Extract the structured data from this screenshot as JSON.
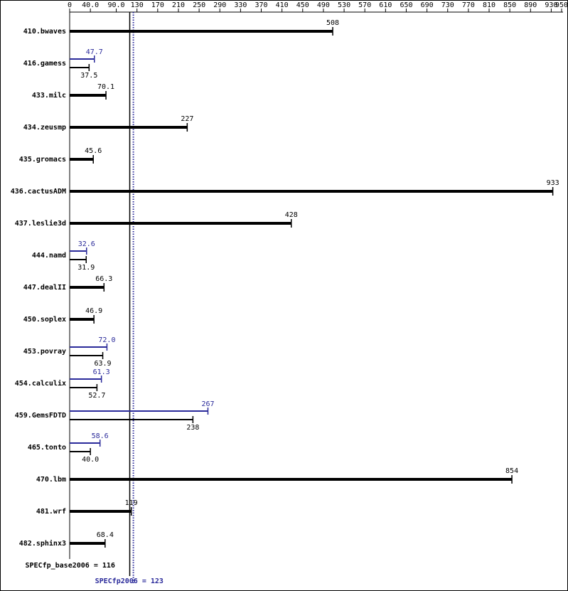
{
  "chart_data": {
    "type": "bar",
    "orientation": "horizontal",
    "categories": [
      "410.bwaves",
      "416.gamess",
      "433.milc",
      "434.zeusmp",
      "435.gromacs",
      "436.cactusADM",
      "437.leslie3d",
      "444.namd",
      "447.dealII",
      "450.soplex",
      "453.povray",
      "454.calculix",
      "459.GemsFDTD",
      "465.tonto",
      "470.lbm",
      "481.wrf",
      "482.sphinx3"
    ],
    "series": [
      {
        "color": "#000000",
        "values": [
          508,
          37.5,
          70.1,
          227,
          45.6,
          933,
          428,
          31.9,
          66.3,
          46.9,
          63.9,
          52.7,
          238,
          40.0,
          854,
          119,
          68.4
        ],
        "value_labels": [
          "508",
          "37.5",
          "70.1",
          "227",
          "45.6",
          "933",
          "428",
          "31.9",
          "66.3",
          "46.9",
          "63.9",
          "52.7",
          "238",
          "40.0",
          "854",
          "119",
          "68.4"
        ]
      },
      {
        "color": "#2a2a9a",
        "values": [
          null,
          47.7,
          null,
          null,
          null,
          null,
          null,
          32.6,
          null,
          null,
          72.0,
          61.3,
          267,
          58.6,
          null,
          null,
          null
        ],
        "value_labels": [
          null,
          "47.7",
          null,
          null,
          null,
          null,
          null,
          "32.6",
          null,
          null,
          "72.0",
          "61.3",
          "267",
          "58.6",
          null,
          null,
          null
        ]
      }
    ],
    "xlim": [
      0,
      950
    ],
    "xticks": [
      0,
      {
        "value": 40,
        "label": "40.0"
      },
      {
        "value": 90,
        "label": "90.0"
      },
      130,
      170,
      210,
      250,
      290,
      330,
      370,
      410,
      450,
      490,
      530,
      570,
      610,
      650,
      690,
      730,
      770,
      810,
      850,
      890,
      930,
      950
    ],
    "reference_lines": [
      {
        "label": "SPECfp_base2006 = 116",
        "value": 116,
        "color": "#000000",
        "style": "solid"
      },
      {
        "label": "SPECfp2006 = 123",
        "value": 123,
        "color": "#2a2a9a",
        "style": "dotted"
      }
    ]
  }
}
